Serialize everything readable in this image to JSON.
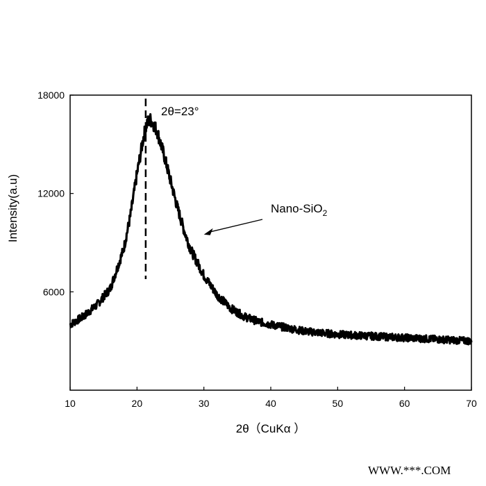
{
  "chart_data": {
    "type": "line",
    "title": "",
    "xlabel": "2θ（CuKα ）",
    "ylabel": "Intensity(a.u)",
    "xlim": [
      10,
      70
    ],
    "ylim": [
      0,
      18000
    ],
    "x_ticks": [
      10,
      20,
      30,
      40,
      50,
      60,
      70
    ],
    "y_ticks": [
      6000,
      12000,
      18000
    ],
    "grid": false,
    "legend": "none",
    "series": [
      {
        "color": "#000000",
        "x": [
          10,
          12,
          14,
          16,
          18,
          19,
          20,
          21,
          21.5,
          22,
          22.5,
          23,
          24,
          25,
          26,
          27,
          28,
          30,
          32,
          34,
          36,
          38,
          40,
          45,
          50,
          55,
          60,
          65,
          70
        ],
        "y": [
          4000,
          4500,
          5200,
          6200,
          8600,
          10600,
          13200,
          15500,
          16300,
          16500,
          16200,
          15800,
          14400,
          12800,
          11200,
          9800,
          8600,
          7000,
          5800,
          5000,
          4500,
          4200,
          4000,
          3600,
          3400,
          3300,
          3200,
          3100,
          3000
        ]
      }
    ],
    "annotations": {
      "peak_label": "2θ=23°",
      "peak_x": 21.3,
      "material_label": "Nano-SiO",
      "material_subscript": "2",
      "arrow_target": {
        "x": 30,
        "y": 9500
      }
    }
  },
  "watermark": "WWW.***.COM"
}
